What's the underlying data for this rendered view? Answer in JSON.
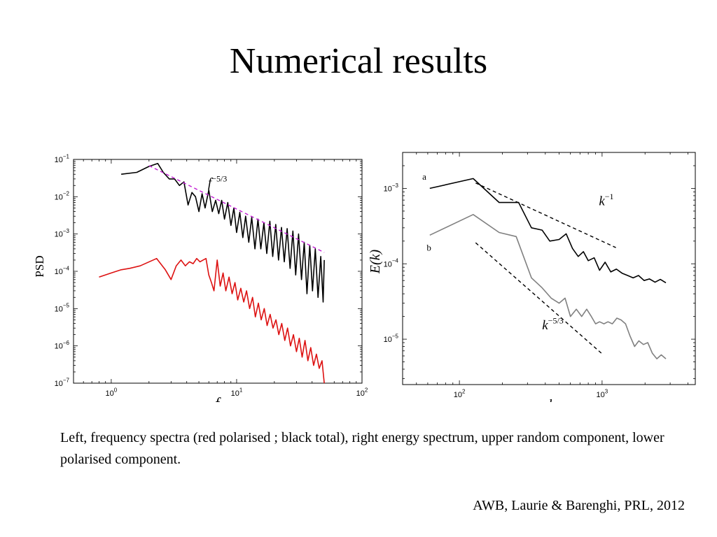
{
  "slide": {
    "title": "Numerical results",
    "caption": "Left, frequency spectra (red polarised ; black total), right energy spectrum, upper random component, lower polarised component.",
    "citation": "AWB, Laurie & Barenghi, PRL, 2012"
  },
  "chart_data": [
    {
      "type": "line",
      "xscale": "log",
      "yscale": "log",
      "xlim": [
        0.5,
        100
      ],
      "ylim": [
        1e-07,
        0.1
      ],
      "xlabel": "f",
      "ylabel": "PSD",
      "xticks": [
        1,
        10,
        100
      ],
      "xtick_labels": [
        {
          "base": "10",
          "exp": "0"
        },
        {
          "base": "10",
          "exp": "1"
        },
        {
          "base": "10",
          "exp": "2"
        }
      ],
      "yticks": [
        1e-07,
        1e-06,
        1e-05,
        0.0001,
        0.001,
        0.01,
        0.1
      ],
      "ytick_labels": [
        {
          "base": "10",
          "exp": "−7"
        },
        {
          "base": "10",
          "exp": "−6"
        },
        {
          "base": "10",
          "exp": "−5"
        },
        {
          "base": "10",
          "exp": "−4"
        },
        {
          "base": "10",
          "exp": "−3"
        },
        {
          "base": "10",
          "exp": "−2"
        },
        {
          "base": "10",
          "exp": "−1"
        }
      ],
      "grid": false,
      "annotations": [
        {
          "base": "f",
          "exp": "−5/3",
          "x": 5.9,
          "y": 0.018
        }
      ],
      "series": [
        {
          "color": "#000000",
          "style": "solid",
          "x": [
            1.2,
            1.6,
            2.0,
            2.35,
            2.6,
            2.9,
            3.2,
            3.5,
            3.8,
            4.1,
            4.4,
            4.7,
            5.0,
            5.3,
            5.6,
            6.0,
            6.4,
            6.8,
            7.2,
            7.6,
            8.0,
            8.5,
            9.0,
            9.5,
            10.0,
            10.6,
            11.2,
            11.8,
            12.5,
            13.2,
            14.0,
            14.8,
            15.6,
            16.5,
            17.4,
            18.4,
            19.4,
            20.5,
            21.6,
            22.8,
            24.0,
            25.3,
            26.7,
            28.1,
            29.6,
            31.2,
            32.9,
            34.6,
            36.4,
            38.3,
            40.3,
            42.4,
            44.6,
            46.9,
            49.0,
            50.0
          ],
          "y": [
            0.04,
            0.045,
            0.065,
            0.078,
            0.045,
            0.03,
            0.03,
            0.02,
            0.025,
            0.006,
            0.013,
            0.01,
            0.004,
            0.012,
            0.005,
            0.015,
            0.004,
            0.008,
            0.0035,
            0.008,
            0.0025,
            0.007,
            0.0017,
            0.005,
            0.0011,
            0.0038,
            0.0008,
            0.003,
            0.0006,
            0.0028,
            0.0004,
            0.0025,
            0.0004,
            0.002,
            0.0003,
            0.0022,
            0.00025,
            0.0018,
            0.0002,
            0.0015,
            0.00018,
            0.0014,
            0.00012,
            0.0012,
            8e-05,
            0.001,
            6e-05,
            0.0006,
            2.5e-05,
            0.0005,
            3e-05,
            0.0004,
            2e-05,
            0.00025,
            1.5e-05,
            0.0002
          ]
        },
        {
          "color": "#dd1111",
          "style": "solid",
          "x": [
            0.8,
            1.0,
            1.2,
            1.4,
            1.7,
            2.3,
            2.7,
            3.0,
            3.3,
            3.6,
            3.9,
            4.2,
            4.5,
            4.8,
            5.1,
            5.4,
            5.7,
            6.0,
            6.3,
            6.6,
            7.0,
            7.4,
            7.8,
            8.2,
            8.7,
            9.2,
            9.7,
            10.2,
            10.8,
            11.4,
            12.0,
            12.7,
            13.4,
            14.1,
            14.9,
            15.7,
            16.6,
            17.5,
            18.5,
            19.5,
            20.6,
            21.7,
            22.9,
            24.2,
            25.5,
            26.9,
            28.4,
            30.0,
            31.6,
            33.3,
            35.1,
            37.0,
            39.0,
            41.1,
            43.3,
            45.6,
            48.0,
            50.0
          ],
          "y": [
            7e-05,
            9e-05,
            0.00011,
            0.00012,
            0.00014,
            0.00022,
            0.00011,
            6e-05,
            0.00014,
            0.0002,
            0.00014,
            0.00018,
            0.00016,
            0.00022,
            0.00018,
            0.0002,
            0.00022,
            8e-05,
            5e-05,
            3e-05,
            0.0002,
            4e-05,
            9e-05,
            3e-05,
            7e-05,
            2.5e-05,
            5e-05,
            1.7e-05,
            3.5e-05,
            1.5e-05,
            3e-05,
            1e-05,
            2e-05,
            6e-06,
            1.4e-05,
            5e-06,
            1e-05,
            3.5e-06,
            7e-06,
            3e-06,
            5e-06,
            2e-06,
            4e-06,
            1.4e-06,
            3e-06,
            1e-06,
            2e-06,
            7e-07,
            1.6e-06,
            5e-07,
            1.4e-06,
            4e-07,
            9e-07,
            3e-07,
            6e-07,
            2.5e-07,
            4e-07,
            1e-07
          ]
        },
        {
          "color": "#c21bd4",
          "style": "dashed",
          "x": [
            2.0,
            50.0
          ],
          "y": [
            0.068,
            0.00032
          ]
        }
      ]
    },
    {
      "type": "line",
      "xscale": "log",
      "yscale": "log",
      "xlim": [
        40,
        4500
      ],
      "ylim": [
        2.5e-06,
        0.003
      ],
      "xlabel": "k",
      "ylabel": "E(k)",
      "xticks": [
        100,
        1000
      ],
      "xtick_labels": [
        {
          "base": "10",
          "exp": "2"
        },
        {
          "base": "10",
          "exp": "3"
        }
      ],
      "yticks": [
        1e-05,
        0.0001,
        0.001
      ],
      "ytick_labels": [
        {
          "base": "10",
          "exp": "−5"
        },
        {
          "base": "10",
          "exp": "−4"
        },
        {
          "base": "10",
          "exp": "−3"
        }
      ],
      "grid": false,
      "annotations": [
        {
          "base": "k",
          "exp": "−1",
          "x": 950,
          "y": 0.0006
        },
        {
          "base": "k",
          "exp": "−5/3",
          "x": 380,
          "y": 1.35e-05
        },
        {
          "text": "a",
          "x": 55,
          "y": 0.0013
        },
        {
          "text": "b",
          "x": 59,
          "y": 0.00015
        }
      ],
      "series": [
        {
          "color": "#000000",
          "style": "solid",
          "x": [
            62,
            125,
            190,
            260,
            320,
            380,
            430,
            500,
            560,
            620,
            680,
            740,
            800,
            880,
            960,
            1050,
            1150,
            1260,
            1380,
            1510,
            1650,
            1800,
            1970,
            2150,
            2350,
            2560,
            2800
          ],
          "y": [
            0.001,
            0.00135,
            0.00065,
            0.00065,
            0.0003,
            0.00028,
            0.0002,
            0.00021,
            0.00025,
            0.00016,
            0.000125,
            0.000145,
            0.00011,
            0.00012,
            8.2e-05,
            0.000105,
            7.8e-05,
            8.5e-05,
            7.5e-05,
            7e-05,
            6.5e-05,
            7e-05,
            6e-05,
            6.3e-05,
            5.7e-05,
            6.2e-05,
            5.6e-05
          ]
        },
        {
          "color": "#808080",
          "style": "solid",
          "x": [
            62,
            125,
            190,
            250,
            320,
            380,
            440,
            500,
            550,
            600,
            660,
            720,
            780,
            840,
            900,
            960,
            1030,
            1100,
            1180,
            1270,
            1360,
            1460,
            1570,
            1690,
            1810,
            1950,
            2090,
            2250,
            2420,
            2600,
            2800
          ],
          "y": [
            0.00024,
            0.00045,
            0.00026,
            0.00023,
            6.5e-05,
            4.8e-05,
            3.5e-05,
            3e-05,
            3.5e-05,
            2e-05,
            2.5e-05,
            2e-05,
            2.5e-05,
            2e-05,
            1.6e-05,
            1.7e-05,
            1.6e-05,
            1.7e-05,
            1.6e-05,
            1.9e-05,
            1.8e-05,
            1.6e-05,
            1.1e-05,
            8e-06,
            9.5e-06,
            8.5e-06,
            9e-06,
            6.5e-06,
            5.5e-06,
            6.2e-06,
            5.5e-06
          ]
        },
        {
          "color": "#000000",
          "style": "dashed",
          "x": [
            130,
            1250
          ],
          "y": [
            0.00118,
            0.000164
          ]
        },
        {
          "color": "#000000",
          "style": "dashed",
          "x": [
            130,
            1020
          ],
          "y": [
            0.00019,
            6.2e-06
          ]
        }
      ]
    }
  ]
}
